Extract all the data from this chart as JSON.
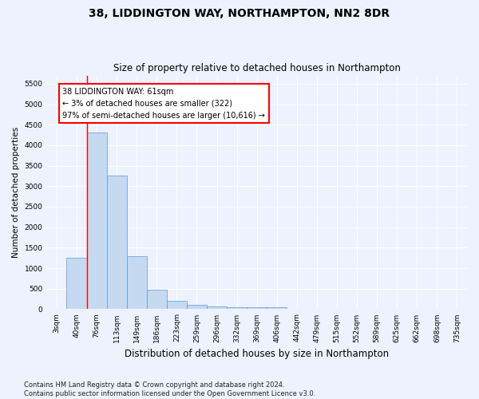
{
  "title": "38, LIDDINGTON WAY, NORTHAMPTON, NN2 8DR",
  "subtitle": "Size of property relative to detached houses in Northampton",
  "xlabel": "Distribution of detached houses by size in Northampton",
  "ylabel": "Number of detached properties",
  "categories": [
    "3sqm",
    "40sqm",
    "76sqm",
    "113sqm",
    "149sqm",
    "186sqm",
    "223sqm",
    "259sqm",
    "296sqm",
    "332sqm",
    "369sqm",
    "406sqm",
    "442sqm",
    "479sqm",
    "515sqm",
    "552sqm",
    "589sqm",
    "625sqm",
    "662sqm",
    "698sqm",
    "735sqm"
  ],
  "values": [
    0,
    1250,
    4300,
    3250,
    1300,
    480,
    210,
    100,
    70,
    55,
    50,
    45,
    0,
    0,
    0,
    0,
    0,
    0,
    0,
    0,
    0
  ],
  "bar_color": "#c5d9f1",
  "bar_edge_color": "#5b9bd5",
  "annotation_box_text": "38 LIDDINGTON WAY: 61sqm\n← 3% of detached houses are smaller (322)\n97% of semi-detached houses are larger (10,616) →",
  "red_line_x": 1.5,
  "ylim": [
    0,
    5700
  ],
  "yticks": [
    0,
    500,
    1000,
    1500,
    2000,
    2500,
    3000,
    3500,
    4000,
    4500,
    5000,
    5500
  ],
  "footnote": "Contains HM Land Registry data © Crown copyright and database right 2024.\nContains public sector information licensed under the Open Government Licence v3.0.",
  "background_color": "#eef2ff",
  "plot_bg_color": "#eef2ff",
  "title_fontsize": 10,
  "subtitle_fontsize": 8.5,
  "xlabel_fontsize": 8.5,
  "ylabel_fontsize": 7.5,
  "tick_fontsize": 6.5,
  "annotation_fontsize": 7,
  "footnote_fontsize": 6
}
